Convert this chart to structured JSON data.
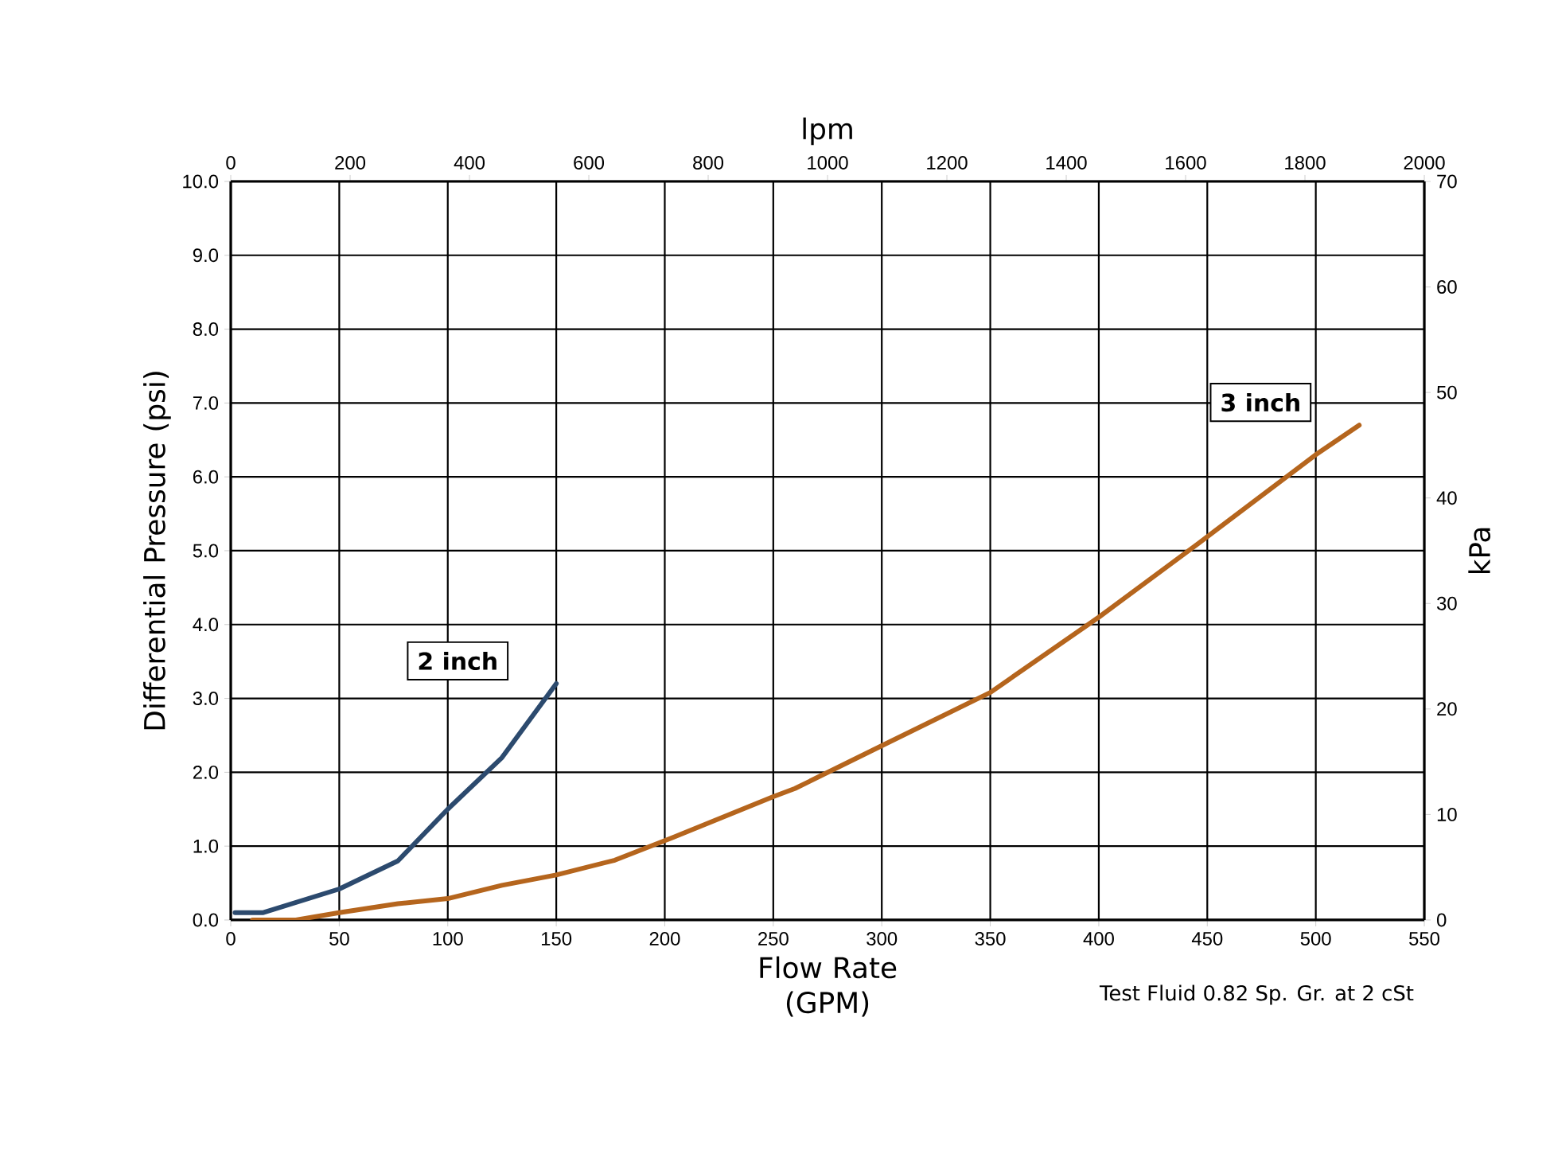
{
  "chart_data": {
    "type": "line",
    "xlabel": "Flow Rate (GPM)",
    "ylabel": "Differential Pressure (psi)",
    "x2label": "lpm",
    "y2label": "kPa",
    "xlim": [
      0,
      550
    ],
    "xticks": [
      0,
      50,
      100,
      150,
      200,
      250,
      300,
      350,
      400,
      450,
      500,
      550
    ],
    "ylim": [
      0,
      10
    ],
    "yticks": [
      {
        "value": 0,
        "label": "0.0"
      },
      {
        "value": 1,
        "label": "1.0"
      },
      {
        "value": 2,
        "label": "2.0"
      },
      {
        "value": 3,
        "label": "3.0"
      },
      {
        "value": 4,
        "label": "4.0"
      },
      {
        "value": 5,
        "label": "5.0"
      },
      {
        "value": 6,
        "label": "6.0"
      },
      {
        "value": 7,
        "label": "7.0"
      },
      {
        "value": 8,
        "label": "8.0"
      },
      {
        "value": 9,
        "label": "9.0"
      },
      {
        "value": 10,
        "label": "10.0"
      }
    ],
    "x2lim": [
      0,
      2000
    ],
    "x2ticks": [
      0,
      200,
      400,
      600,
      800,
      1000,
      1200,
      1400,
      1600,
      1800,
      2000
    ],
    "y2lim": [
      0,
      70
    ],
    "y2ticks": [
      0,
      10,
      20,
      30,
      40,
      50,
      60,
      70
    ],
    "grid": true,
    "series": [
      {
        "name": "2 inch",
        "color": "#2c4a6e",
        "x": [
          2,
          15,
          50,
          77,
          100,
          125,
          150
        ],
        "values": [
          0.1,
          0.1,
          0.42,
          0.8,
          1.5,
          2.2,
          3.2
        ]
      },
      {
        "name": "3 inch",
        "color": "#b5651d",
        "x": [
          10,
          30,
          50,
          77,
          100,
          125,
          150,
          177,
          204,
          250,
          260,
          300,
          350,
          400,
          446,
          500,
          520
        ],
        "values": [
          0,
          0,
          0.1,
          0.22,
          0.29,
          0.47,
          0.61,
          0.81,
          1.12,
          1.67,
          1.78,
          2.36,
          3.08,
          4.1,
          5.1,
          6.3,
          6.7
        ]
      }
    ],
    "annotations": [
      "Test Fluid 0.82 Sp. Gr. at 2 cSt"
    ]
  }
}
